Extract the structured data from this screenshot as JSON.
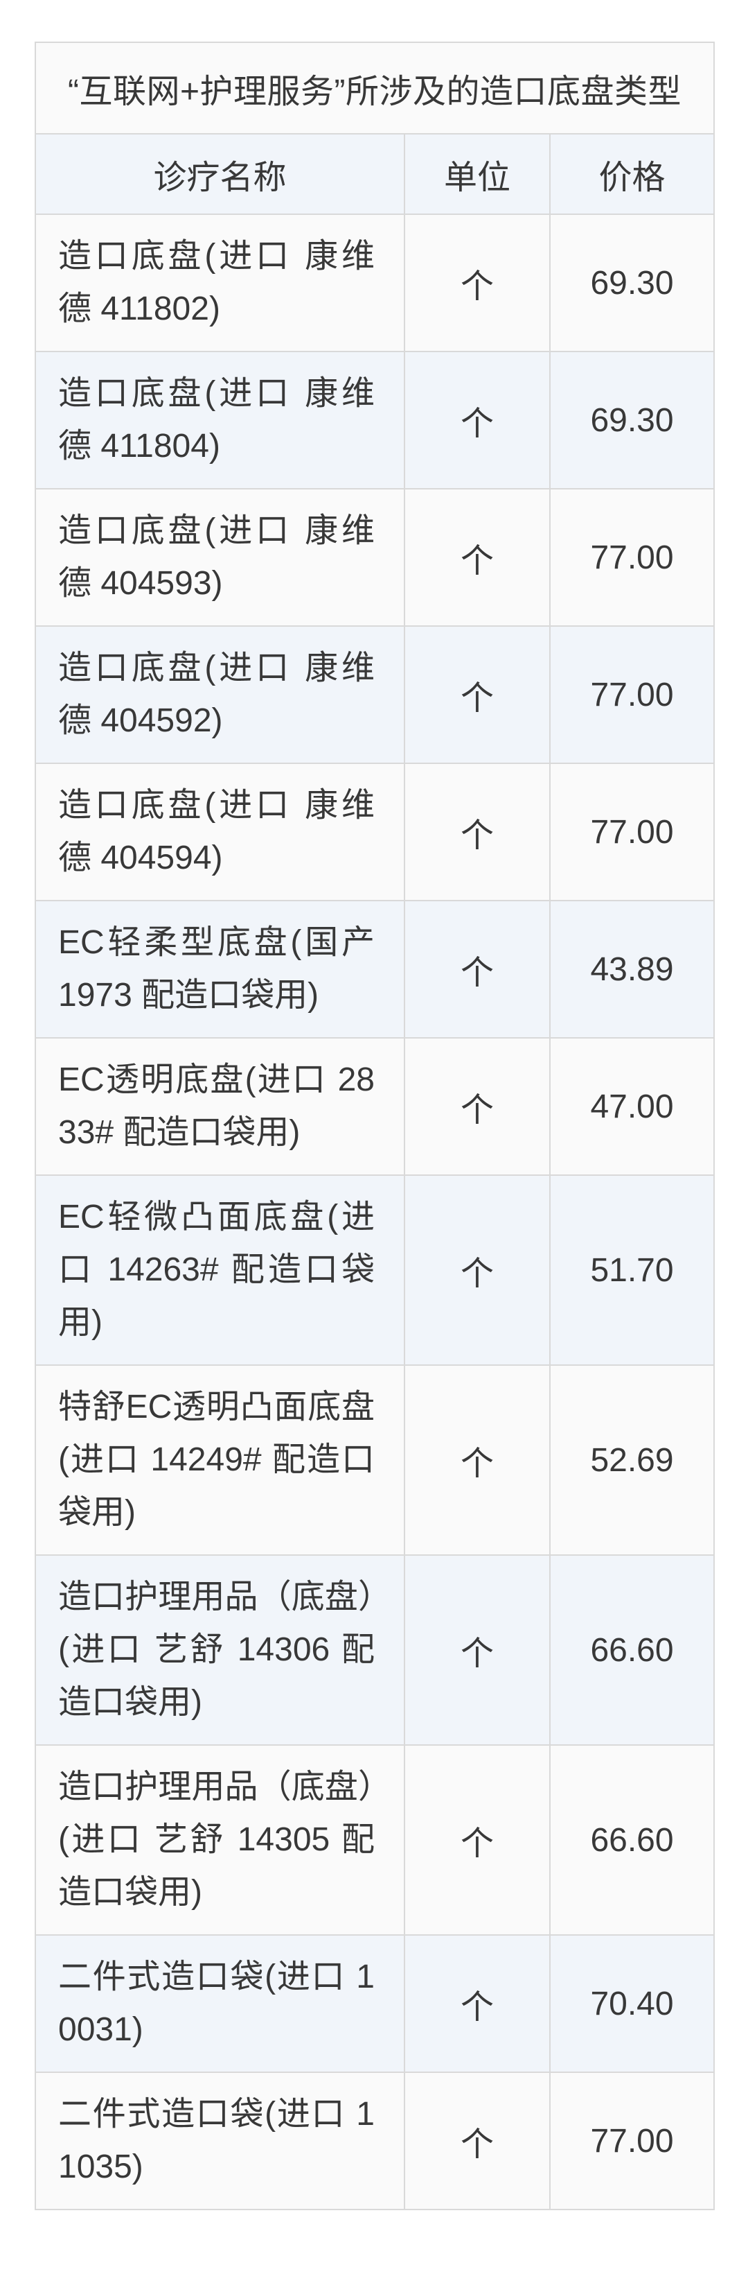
{
  "table": {
    "title": "“互联网+护理服务”所涉及的造口底盘类型",
    "columns": {
      "name": "诊疗名称",
      "unit": "单位",
      "price": "价格"
    },
    "rows": [
      {
        "name": "造口底盘(进口 康维德 411802)",
        "unit": "个",
        "price": "69.30"
      },
      {
        "name": "造口底盘(进口 康维德 411804)",
        "unit": "个",
        "price": "69.30"
      },
      {
        "name": "造口底盘(进口 康维德 404593)",
        "unit": "个",
        "price": "77.00"
      },
      {
        "name": "造口底盘(进口 康维德 404592)",
        "unit": "个",
        "price": "77.00"
      },
      {
        "name": "造口底盘(进口 康维德 404594)",
        "unit": "个",
        "price": "77.00"
      },
      {
        "name": "EC轻柔型底盘(国产 1973 配造口袋用)",
        "unit": "个",
        "price": "43.89"
      },
      {
        "name": "EC透明底盘(进口 2833# 配造口袋用)",
        "unit": "个",
        "price": "47.00"
      },
      {
        "name": "EC轻微凸面底盘(进口 14263# 配造口袋用)",
        "unit": "个",
        "price": "51.70"
      },
      {
        "name": "特舒EC透明凸面底盘(进口 14249# 配造口袋用)",
        "unit": "个",
        "price": "52.69"
      },
      {
        "name": "造口护理用品（底盘）(进口 艺舒 14306 配造口袋用)",
        "unit": "个",
        "price": "66.60"
      },
      {
        "name": "造口护理用品（底盘）(进口 艺舒 14305 配造口袋用)",
        "unit": "个",
        "price": "66.60"
      },
      {
        "name": "二件式造口袋(进口 10031)",
        "unit": "个",
        "price": "70.40"
      },
      {
        "name": "二件式造口袋(进口 11035)",
        "unit": "个",
        "price": "77.00"
      }
    ],
    "colors": {
      "border": "#d9d9d9",
      "header_bg": "#f1f5fa",
      "row_even_bg": "#f1f5fa",
      "row_odd_bg": "#fafafa",
      "text": "#383838",
      "page_bg": "#ffffff"
    }
  }
}
